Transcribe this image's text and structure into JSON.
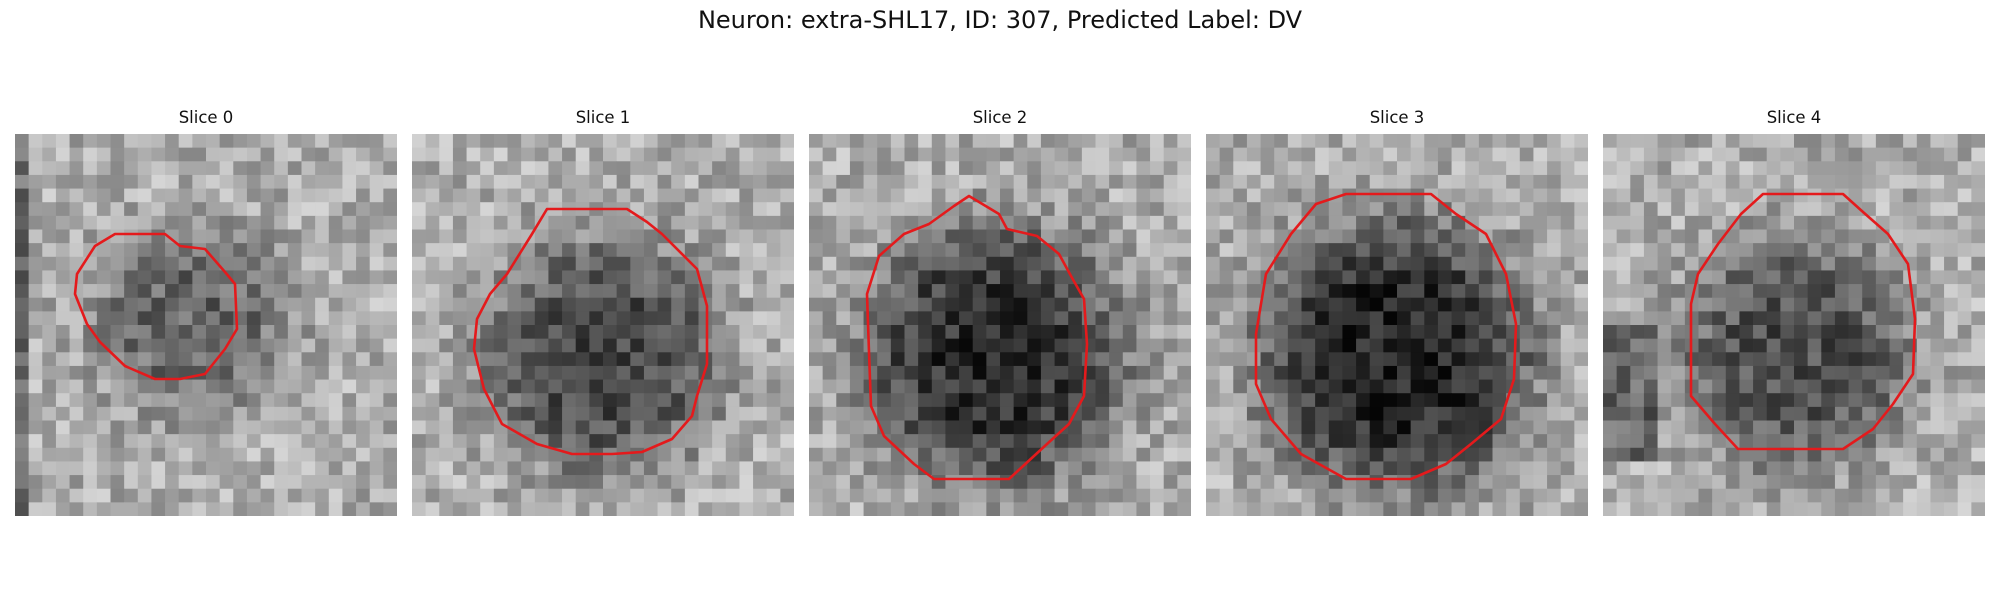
{
  "figure": {
    "title": "Neuron: extra-SHL17, ID: 307, Predicted Label: DV"
  },
  "panels": [
    {
      "title": "Slice 0"
    },
    {
      "title": "Slice 1"
    },
    {
      "title": "Slice 2"
    },
    {
      "title": "Slice 3"
    },
    {
      "title": "Slice 4"
    }
  ],
  "colors": {
    "contour": "#e41a1c",
    "colormap": "grayscale"
  }
}
